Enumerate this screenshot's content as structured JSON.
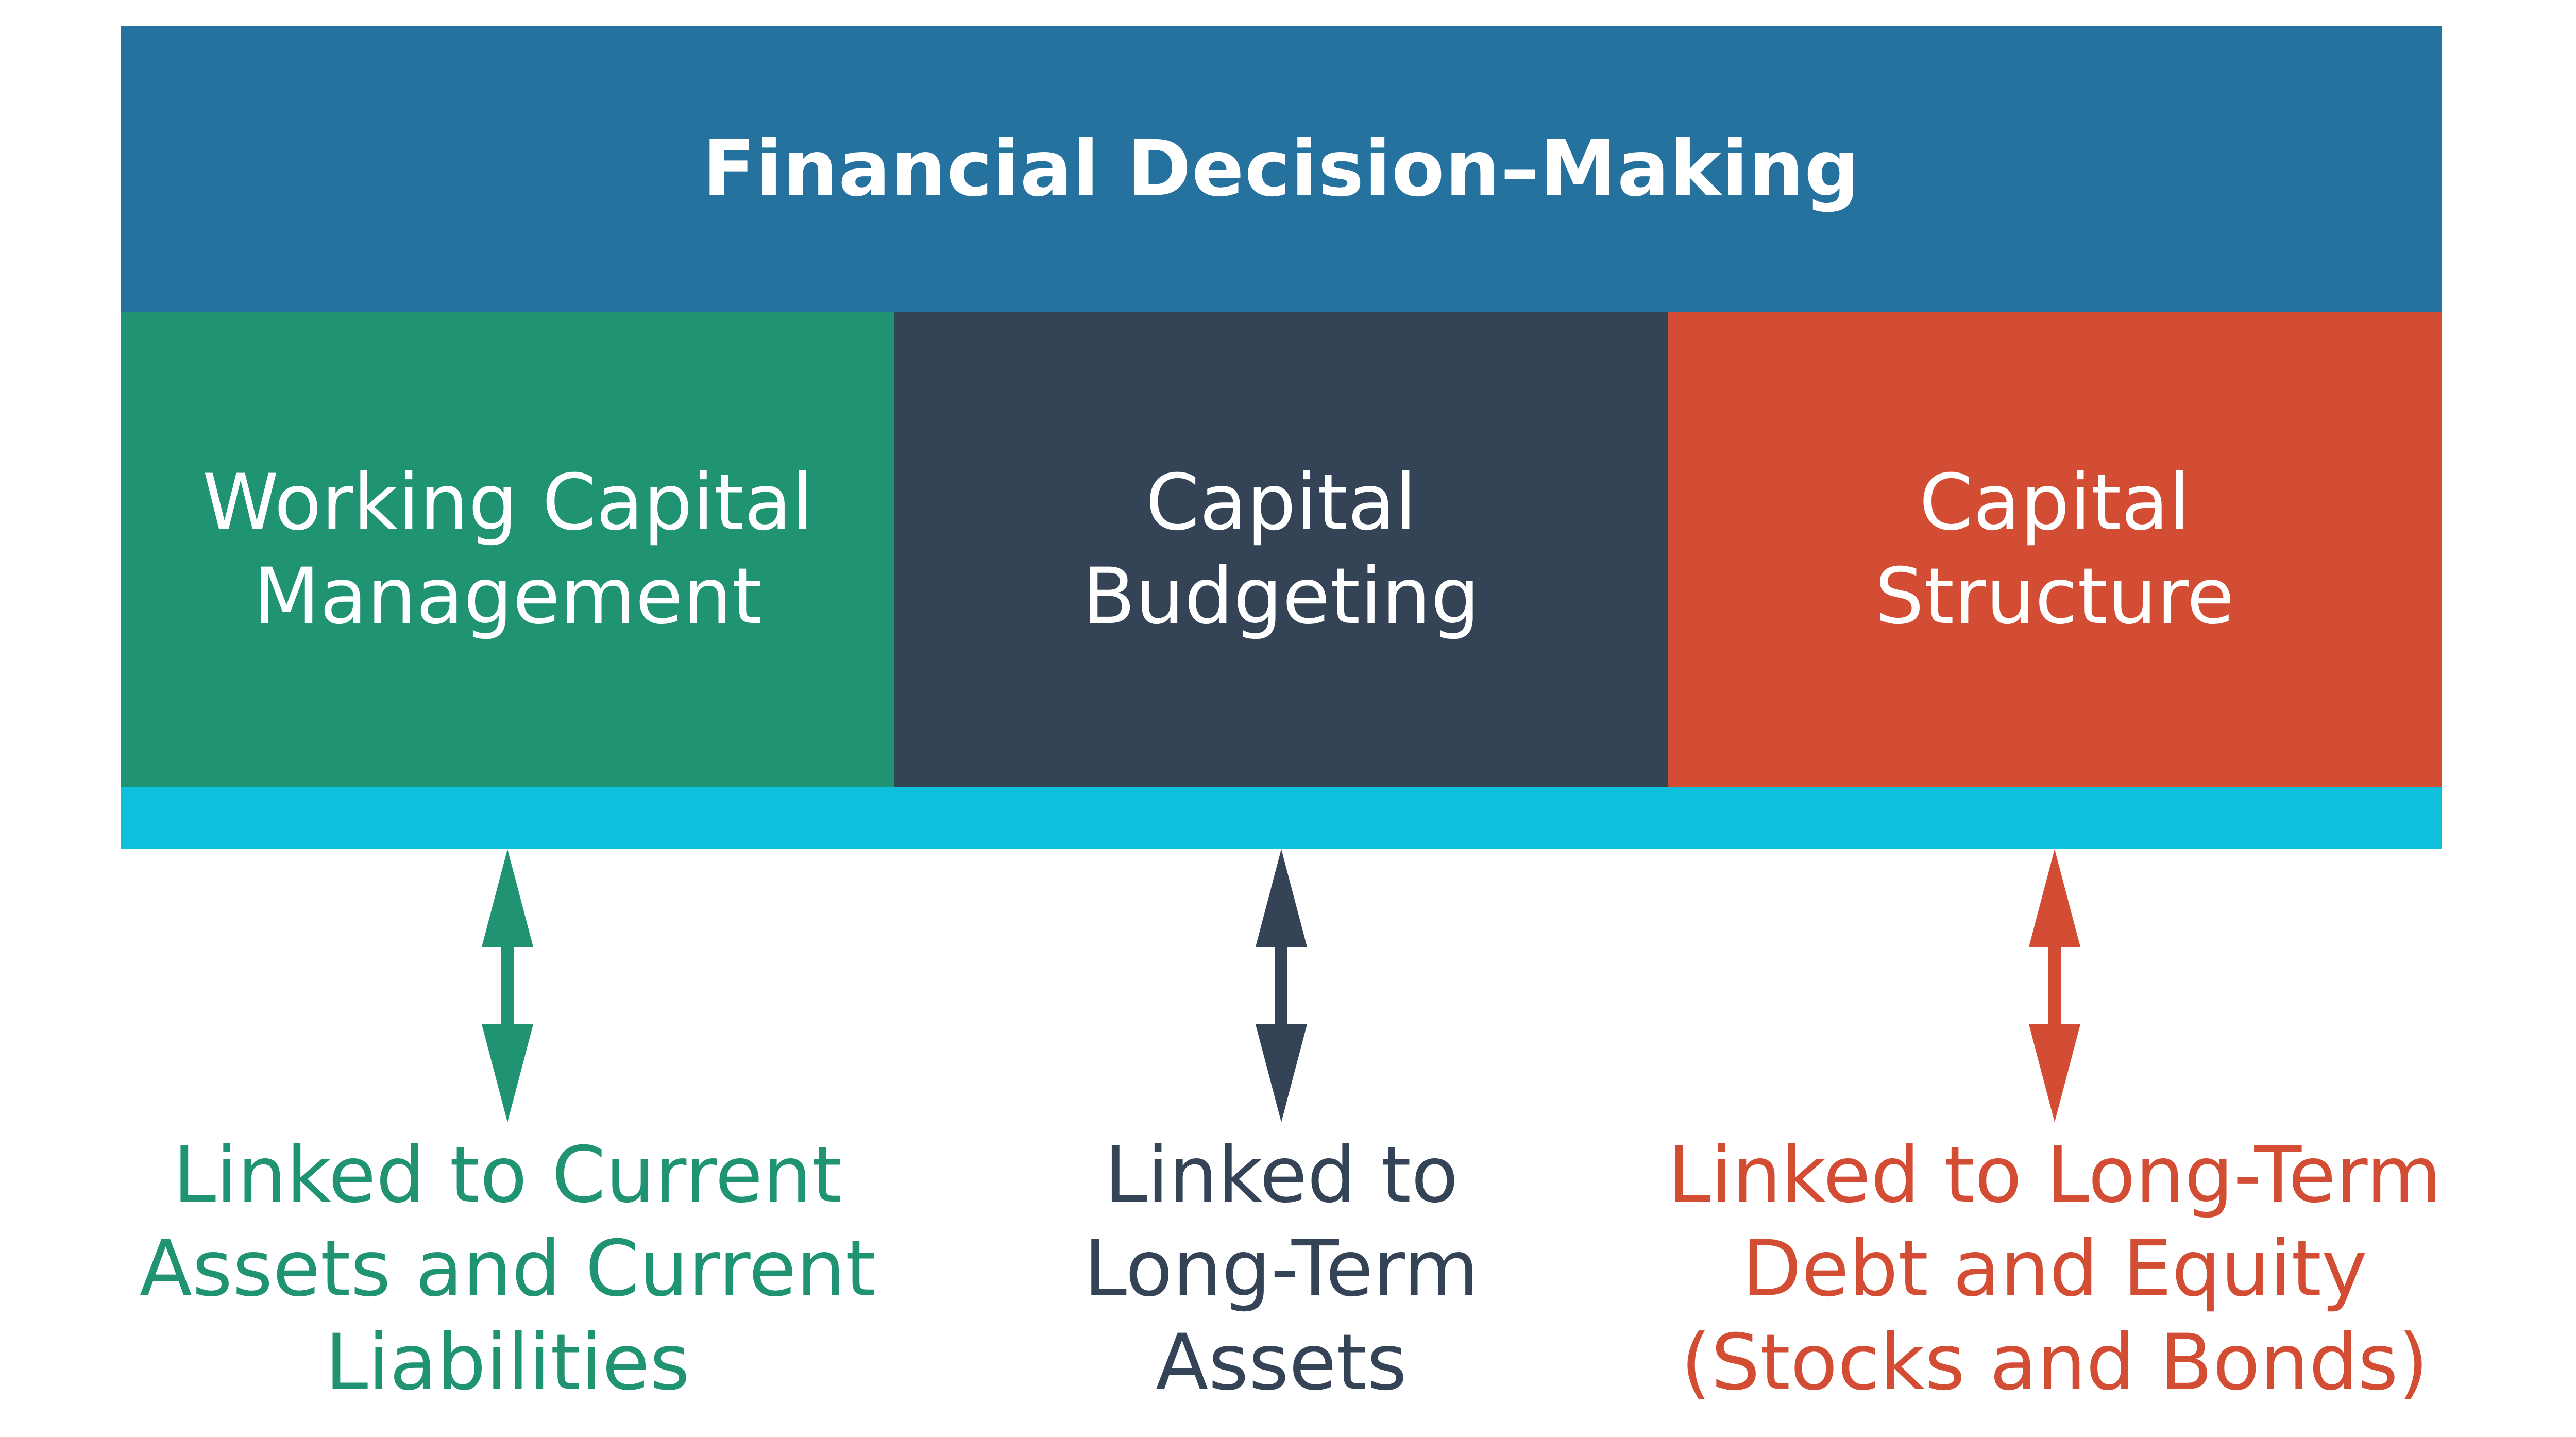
{
  "title": "Financial Decision–Making",
  "colors": {
    "header": "#26729e",
    "bar": "#0fc0dc",
    "working_capital": "#1f9372",
    "capital_budgeting": "#344456",
    "capital_structure": "#d24d33"
  },
  "categories": [
    {
      "label": "Working Capital\nManagement",
      "link": "Linked to Current\nAssets and Current\nLiabilities",
      "color": "#1f9372",
      "icon": "double-arrow-icon"
    },
    {
      "label": "Capital\nBudgeting",
      "link": "Linked to\nLong-Term\nAssets",
      "color": "#344456",
      "icon": "double-arrow-icon"
    },
    {
      "label": "Capital\nStructure",
      "link": "Linked to Long-Term\nDebt and Equity\n(Stocks and Bonds)",
      "color": "#d24d33",
      "icon": "double-arrow-icon"
    }
  ]
}
